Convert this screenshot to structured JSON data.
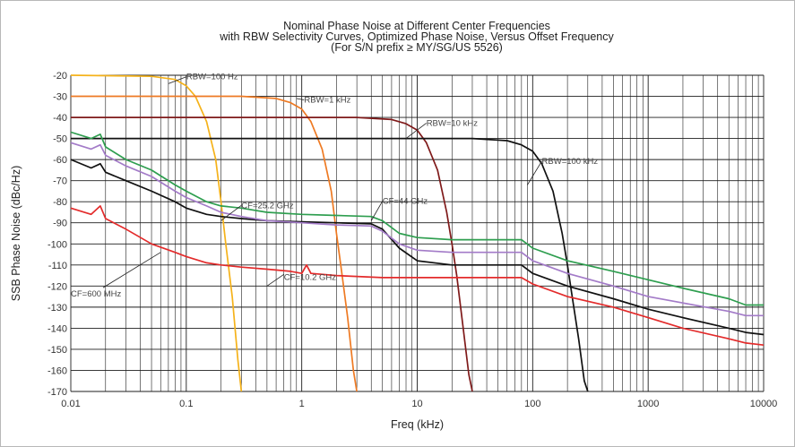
{
  "chart_data": {
    "type": "line",
    "title_lines": [
      "Nominal Phase Noise at Different Center Frequencies",
      "with RBW Selectivity Curves, Optimized Phase Noise, Versus Offset Frequency",
      "(For S/N prefix ≥ MY/SG/US 5526)"
    ],
    "xlabel": "Freq (kHz)",
    "ylabel": "SSB Phase Noise (dBc/Hz)",
    "x_scale": "log",
    "xlim": [
      0.01,
      10000
    ],
    "ylim": [
      -170,
      -20
    ],
    "x_ticks": [
      "0.01",
      "0.1",
      "1",
      "10",
      "100",
      "1000",
      "10000"
    ],
    "y_ticks": [
      "-20",
      "-30",
      "-40",
      "-50",
      "-60",
      "-70",
      "-80",
      "-90",
      "-100",
      "-110",
      "-120",
      "-130",
      "-140",
      "-150",
      "-160",
      "-170"
    ],
    "grid": true,
    "series": [
      {
        "name": "RBW=100 Hz",
        "color": "#f5b21a",
        "x": [
          0.01,
          0.05,
          0.08,
          0.1,
          0.12,
          0.15,
          0.18,
          0.2,
          0.22,
          0.25,
          0.28,
          0.3
        ],
        "y": [
          -20,
          -20.5,
          -22,
          -25,
          -30,
          -42,
          -60,
          -80,
          -100,
          -125,
          -155,
          -170
        ]
      },
      {
        "name": "RBW=1 kHz",
        "color": "#ee7a23",
        "x": [
          0.01,
          0.3,
          0.6,
          0.8,
          1.0,
          1.2,
          1.5,
          1.8,
          2.0,
          2.2,
          2.5,
          2.8,
          3.0
        ],
        "y": [
          -30,
          -30,
          -31,
          -33,
          -36,
          -42,
          -55,
          -75,
          -95,
          -112,
          -135,
          -160,
          -170
        ]
      },
      {
        "name": "RBW=10 kHz",
        "color": "#7f1a1a",
        "x": [
          0.01,
          3,
          6,
          8,
          10,
          12,
          15,
          18,
          20,
          22,
          25,
          28,
          30
        ],
        "y": [
          -40,
          -40,
          -41,
          -43,
          -46,
          -52,
          -65,
          -85,
          -100,
          -115,
          -140,
          -162,
          -170
        ]
      },
      {
        "name": "RBW=100 kHz",
        "color": "#111111",
        "x": [
          0.01,
          30,
          60,
          80,
          100,
          120,
          150,
          180,
          200,
          220,
          250,
          280,
          300
        ],
        "y": [
          -50,
          -50,
          -51,
          -53,
          -56,
          -62,
          -75,
          -95,
          -110,
          -125,
          -145,
          -165,
          -170
        ]
      },
      {
        "name": "CF=44 GHz",
        "color": "#2e9e4f",
        "x": [
          0.01,
          0.015,
          0.018,
          0.02,
          0.03,
          0.05,
          0.08,
          0.1,
          0.15,
          0.2,
          0.3,
          0.5,
          1,
          2,
          4,
          5,
          7,
          10,
          20,
          50,
          80,
          100,
          200,
          500,
          1000,
          2000,
          5000,
          7000,
          10000
        ],
        "y": [
          -47,
          -50,
          -48,
          -54,
          -60,
          -65,
          -72,
          -75,
          -80,
          -82,
          -83,
          -85,
          -86,
          -86.5,
          -87,
          -89,
          -95,
          -97,
          -98,
          -98,
          -98,
          -102,
          -108,
          -113,
          -117,
          -121,
          -126,
          -129,
          -129
        ]
      },
      {
        "name": "CF=25.2 GHz",
        "color": "#a37bc8",
        "x": [
          0.01,
          0.015,
          0.018,
          0.02,
          0.03,
          0.05,
          0.08,
          0.1,
          0.15,
          0.2,
          0.3,
          0.5,
          1,
          2,
          4,
          5,
          7,
          10,
          20,
          50,
          80,
          100,
          200,
          500,
          1000,
          2000,
          5000,
          7000,
          10000
        ],
        "y": [
          -52,
          -55,
          -53,
          -58,
          -63,
          -68,
          -75,
          -78,
          -82,
          -85,
          -87,
          -89,
          -90,
          -91,
          -91.5,
          -94,
          -100,
          -103,
          -104,
          -104,
          -104,
          -108,
          -114,
          -120,
          -125,
          -128,
          -132,
          -134,
          -134
        ]
      },
      {
        "name": "CF=10.2 GHz",
        "color": "#111111",
        "x": [
          0.01,
          0.015,
          0.018,
          0.02,
          0.03,
          0.05,
          0.08,
          0.1,
          0.15,
          0.2,
          0.3,
          0.5,
          1,
          2,
          4,
          5,
          7,
          10,
          20,
          50,
          80,
          100,
          200,
          500,
          1000,
          2000,
          5000,
          7000,
          10000
        ],
        "y": [
          -60,
          -64,
          -62,
          -66,
          -70,
          -75,
          -80,
          -83,
          -86,
          -87,
          -88,
          -89,
          -89.5,
          -90,
          -90.5,
          -93,
          -102,
          -108,
          -110,
          -110,
          -110,
          -114,
          -120,
          -126,
          -131,
          -135,
          -140,
          -142,
          -143
        ]
      },
      {
        "name": "CF=600 MHz",
        "color": "#e32b2b",
        "x": [
          0.01,
          0.015,
          0.018,
          0.02,
          0.03,
          0.05,
          0.08,
          0.1,
          0.15,
          0.2,
          0.3,
          0.5,
          0.8,
          1,
          1.1,
          1.2,
          2,
          5,
          10,
          20,
          50,
          80,
          100,
          200,
          500,
          1000,
          2000,
          5000,
          7000,
          10000
        ],
        "y": [
          -83,
          -86,
          -82,
          -88,
          -93,
          -100,
          -104,
          -106,
          -109,
          -110,
          -111,
          -112,
          -113,
          -114,
          -110,
          -114,
          -115,
          -116,
          -116,
          -116,
          -116,
          -116,
          -119,
          -125,
          -130,
          -135,
          -140,
          -145,
          -147,
          -148
        ]
      }
    ],
    "annotations": [
      {
        "text": "RBW=100 Hz",
        "x": 0.1,
        "y": -22
      },
      {
        "text": "RBW=1 kHz",
        "x": 1.05,
        "y": -33
      },
      {
        "text": "RBW=10 kHz",
        "x": 12,
        "y": -44
      },
      {
        "text": "RBW=100 kHz",
        "x": 120,
        "y": -62
      },
      {
        "text": "CF=25.2 GHz",
        "x": 0.3,
        "y": -83
      },
      {
        "text": "CF=44 GHz",
        "x": 5,
        "y": -81
      },
      {
        "text": "CF=10.2 GHz",
        "x": 0.7,
        "y": -117
      },
      {
        "text": "CF=600 MHz",
        "x": 0.01,
        "y": -125
      }
    ]
  }
}
